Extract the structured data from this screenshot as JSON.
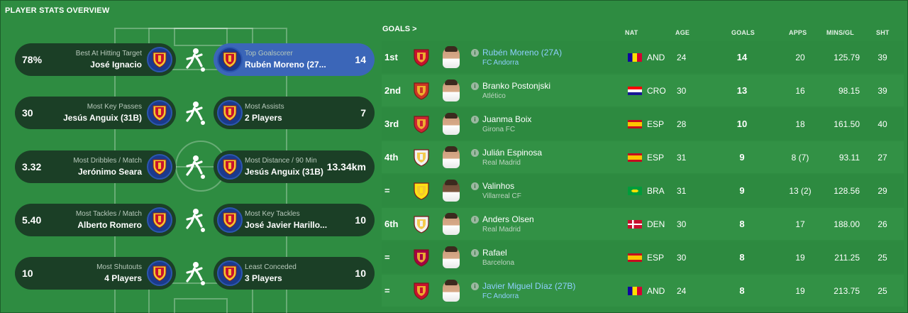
{
  "panel_title": "PLAYER STATS OVERVIEW",
  "stats": [
    {
      "left": {
        "value": "78%",
        "category": "Best At Hitting Target",
        "name": "José Ignacio"
      },
      "right": {
        "value": "14",
        "category": "Top Goalscorer",
        "name": "Rubén Moreno (27..."
      },
      "action_icon": "kicking-player-icon",
      "right_highlight": true
    },
    {
      "left": {
        "value": "30",
        "category": "Most Key Passes",
        "name": "Jesús Anguix (31B)"
      },
      "right": {
        "value": "7",
        "category": "Most Assists",
        "name": "2 Players"
      },
      "action_icon": "passing-player-icon",
      "right_highlight": false
    },
    {
      "left": {
        "value": "3.32",
        "category": "Most Dribbles / Match",
        "name": "Jerónimo Seara"
      },
      "right": {
        "value": "13.34km",
        "category": "Most Distance / 90 Min",
        "name": "Jesús Anguix (31B)"
      },
      "action_icon": "running-player-icon",
      "right_highlight": false
    },
    {
      "left": {
        "value": "5.40",
        "category": "Most Tackles / Match",
        "name": "Alberto Romero"
      },
      "right": {
        "value": "10",
        "category": "Most Key Tackles",
        "name": "José Javier Harillo..."
      },
      "action_icon": "tackling-player-icon",
      "right_highlight": false
    },
    {
      "left": {
        "value": "10",
        "category": "Most Shutouts",
        "name": "4 Players"
      },
      "right": {
        "value": "10",
        "category": "Least Conceded",
        "name": "3 Players"
      },
      "action_icon": "diving-keeper-icon",
      "right_highlight": false
    }
  ],
  "goals": {
    "title": "GOALS >",
    "headers": {
      "nat": "NAT",
      "age": "AGE",
      "goals": "GOALS",
      "apps": "APPS",
      "mins": "MINS/GL",
      "sht": "SHT"
    },
    "rows": [
      {
        "pos": "1st",
        "name": "Rubén Moreno (27A)",
        "club": "FC Andorra",
        "link": true,
        "nat": "AND",
        "age": "24",
        "goals": "14",
        "apps": "20",
        "mins": "125.79",
        "sht": "39",
        "crest_color": "#c8102e",
        "flag": "and"
      },
      {
        "pos": "2nd",
        "name": "Branko Postonjski",
        "club": "Atlético",
        "link": false,
        "nat": "CRO",
        "age": "30",
        "goals": "13",
        "apps": "16",
        "mins": "98.15",
        "sht": "39",
        "crest_color": "#cb3524",
        "flag": "cro"
      },
      {
        "pos": "3rd",
        "name": "Juanma Boix",
        "club": "Girona FC",
        "link": false,
        "nat": "ESP",
        "age": "28",
        "goals": "10",
        "apps": "18",
        "mins": "161.50",
        "sht": "40",
        "crest_color": "#cd2534",
        "flag": "esp"
      },
      {
        "pos": "4th",
        "name": "Julián Espinosa",
        "club": "Real Madrid",
        "link": false,
        "nat": "ESP",
        "age": "31",
        "goals": "9",
        "apps": "8 (7)",
        "mins": "93.11",
        "sht": "27",
        "crest_color": "#f2f2f2",
        "flag": "esp"
      },
      {
        "pos": "=",
        "name": "Valinhos",
        "club": "Villarreal CF",
        "link": false,
        "nat": "BRA",
        "age": "31",
        "goals": "9",
        "apps": "13 (2)",
        "mins": "128.56",
        "sht": "29",
        "crest_color": "#ffe114",
        "flag": "bra"
      },
      {
        "pos": "6th",
        "name": "Anders Olsen",
        "club": "Real Madrid",
        "link": false,
        "nat": "DEN",
        "age": "30",
        "goals": "8",
        "apps": "17",
        "mins": "188.00",
        "sht": "26",
        "crest_color": "#f2f2f2",
        "flag": "den"
      },
      {
        "pos": "=",
        "name": "Rafael",
        "club": "Barcelona",
        "link": false,
        "nat": "ESP",
        "age": "30",
        "goals": "8",
        "apps": "19",
        "mins": "211.25",
        "sht": "25",
        "crest_color": "#a50044",
        "flag": "esp"
      },
      {
        "pos": "=",
        "name": "Javier Miguel Díaz (27B)",
        "club": "FC Andorra",
        "link": true,
        "nat": "AND",
        "age": "24",
        "goals": "8",
        "apps": "19",
        "mins": "213.75",
        "sht": "25",
        "crest_color": "#c8102e",
        "flag": "and"
      }
    ]
  }
}
